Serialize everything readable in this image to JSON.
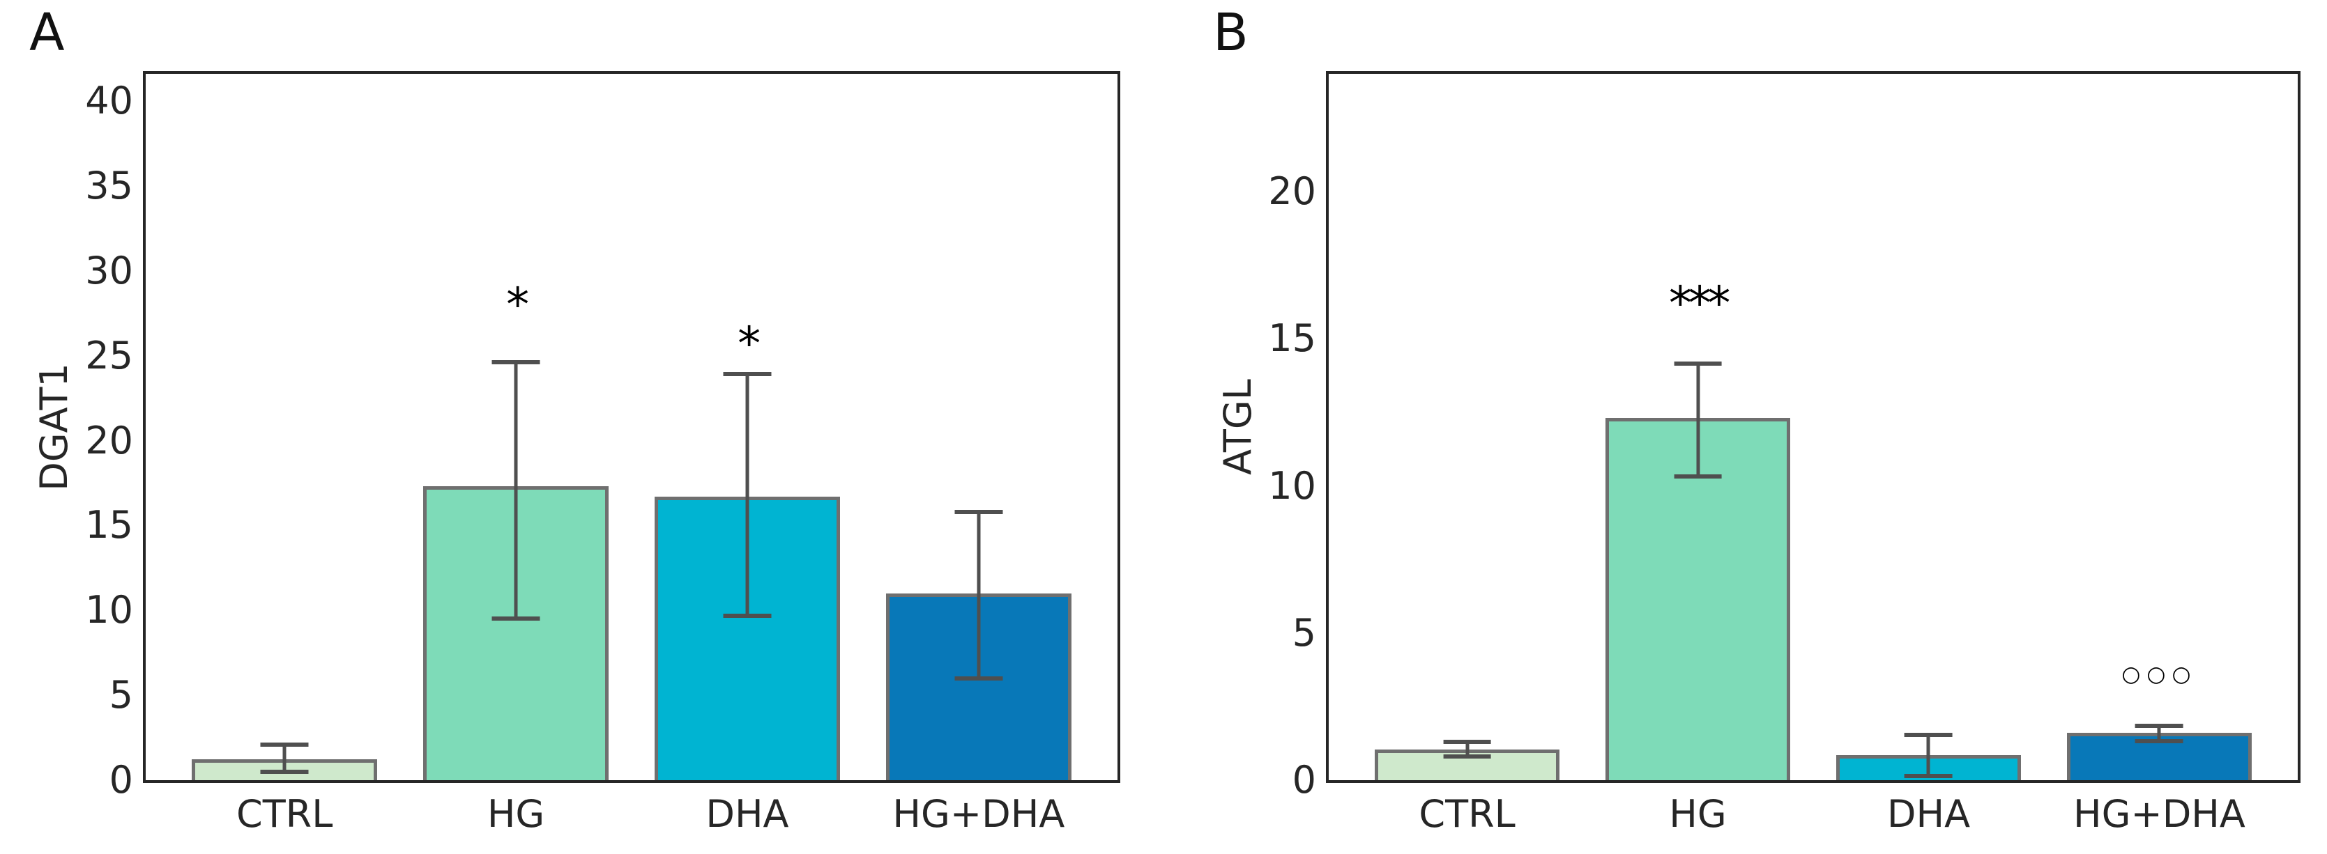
{
  "figure": {
    "background": "#ffffff",
    "text_color": "#262626",
    "frame_color": "#262626",
    "bar_edge_color": "#6f6f6f",
    "error_bar_color": "#4f4f4f"
  },
  "chart_data": [
    {
      "type": "bar",
      "panel_label": "A",
      "title": "",
      "xlabel": "",
      "ylabel": "DGAT1",
      "categories": [
        "CTRL",
        "HG",
        "DHA",
        "HG+DHA"
      ],
      "values": [
        1.25,
        17.3,
        16.7,
        11.0
      ],
      "error_low": [
        0.5,
        9.5,
        9.7,
        6.0
      ],
      "error_high": [
        2.1,
        24.6,
        23.9,
        15.8
      ],
      "bar_colors": [
        "#cfe9cc",
        "#7edbb8",
        "#00b4d2",
        "#0878b8"
      ],
      "yticks": [
        0,
        5,
        10,
        15,
        20,
        25,
        30,
        35,
        40
      ],
      "ylim": [
        0,
        41.6
      ],
      "grid": false,
      "legend": null,
      "annotations": [
        {
          "index": 1,
          "category": "HG",
          "text": "*",
          "y": 28.5,
          "style": "star"
        },
        {
          "index": 2,
          "category": "DHA",
          "text": "*",
          "y": 26.2,
          "style": "star"
        }
      ]
    },
    {
      "type": "bar",
      "panel_label": "B",
      "title": "",
      "xlabel": "",
      "ylabel": "ATGL",
      "categories": [
        "CTRL",
        "HG",
        "DHA",
        "HG+DHA"
      ],
      "values": [
        1.05,
        12.3,
        0.85,
        1.6
      ],
      "error_low": [
        0.8,
        10.33,
        0.15,
        1.32
      ],
      "error_high": [
        1.3,
        14.15,
        1.55,
        1.85
      ],
      "bar_colors": [
        "#cfe9cc",
        "#7edbb8",
        "#00b4d2",
        "#0878b8"
      ],
      "yticks": [
        0,
        5,
        10,
        15,
        20
      ],
      "ylim": [
        0,
        24
      ],
      "grid": false,
      "legend": null,
      "annotations": [
        {
          "index": 1,
          "category": "HG",
          "text": "***",
          "y": 16.5,
          "style": "star"
        },
        {
          "index": 3,
          "category": "HG+DHA",
          "text": "○○○",
          "y": 3.6,
          "style": "circles"
        }
      ]
    }
  ]
}
